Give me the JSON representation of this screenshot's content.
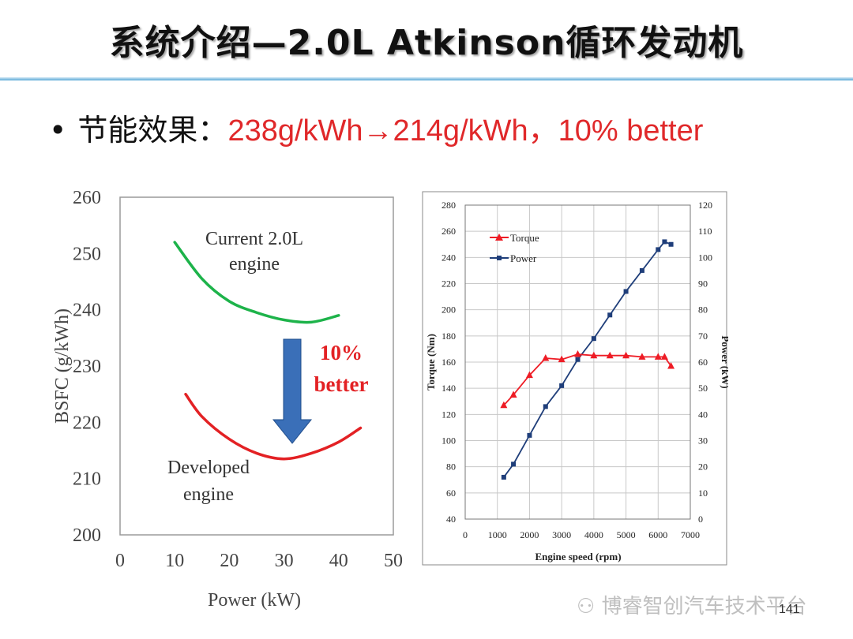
{
  "slide": {
    "title": "系统介绍—2.0L Atkinson循环发动机",
    "bullet_label": "节能效果：",
    "bullet_value": "238g/kWh→214g/kWh，10% better",
    "footer_logo_text": "博睿智创汽车技术平台",
    "page_number": "141"
  },
  "colors": {
    "current_curve": "#1db34a",
    "developed_curve": "#e32124",
    "arrow": "#3a6fb8",
    "annotation": "#e32124",
    "torque": "#ee1c25",
    "power": "#1f3e7a"
  },
  "chart_data": [
    {
      "type": "line",
      "xlabel": "Power (kW)",
      "ylabel": "BSFC (g/kWh)",
      "xlim": [
        0,
        50
      ],
      "ylim": [
        200,
        260
      ],
      "x_ticks": [
        "0",
        "10",
        "20",
        "30",
        "40",
        "50"
      ],
      "y_ticks": [
        "200",
        "210",
        "220",
        "230",
        "240",
        "250",
        "260"
      ],
      "grid": false,
      "series": [
        {
          "name": "Current 2.0L engine",
          "label_lines": [
            "Current 2.0L",
            "engine"
          ],
          "x": [
            10,
            15,
            20,
            25,
            30,
            35,
            40
          ],
          "y": [
            252,
            245.5,
            241.5,
            239.5,
            238.2,
            237.8,
            239
          ]
        },
        {
          "name": "Developed engine",
          "label_lines": [
            "Developed",
            "engine"
          ],
          "x": [
            12,
            15,
            20,
            25,
            30,
            35,
            40,
            44
          ],
          "y": [
            225,
            221,
            217,
            214.5,
            213.5,
            214.5,
            216.5,
            219
          ]
        }
      ],
      "annotations": [
        "10%",
        "better"
      ]
    },
    {
      "type": "line",
      "xlabel": "Engine speed (rpm)",
      "ylabel": "Torque (Nm)",
      "y2label": "Power (kW)",
      "xlim": [
        0,
        7000
      ],
      "ylim": [
        40,
        280
      ],
      "y2lim": [
        0,
        120
      ],
      "x_ticks": [
        "0",
        "1000",
        "2000",
        "3000",
        "4000",
        "5000",
        "6000",
        "7000"
      ],
      "y_ticks": [
        "40",
        "60",
        "80",
        "100",
        "120",
        "140",
        "160",
        "180",
        "200",
        "220",
        "240",
        "260",
        "280"
      ],
      "y2_ticks": [
        "0",
        "10",
        "20",
        "30",
        "40",
        "50",
        "60",
        "70",
        "80",
        "90",
        "100",
        "110",
        "120"
      ],
      "grid": true,
      "legend": "top-left",
      "series": [
        {
          "name": "Torque",
          "axis": "left",
          "marker": "triangle",
          "x": [
            1200,
            1500,
            2000,
            2500,
            3000,
            3500,
            4000,
            4500,
            5000,
            5500,
            6000,
            6200,
            6400
          ],
          "y": [
            127,
            135,
            150,
            163,
            162,
            166,
            165,
            165,
            165,
            164,
            164,
            164,
            157
          ]
        },
        {
          "name": "Power",
          "axis": "right",
          "marker": "square",
          "x": [
            1200,
            1500,
            2000,
            2500,
            3000,
            3500,
            4000,
            4500,
            5000,
            5500,
            6000,
            6200,
            6400
          ],
          "y": [
            16,
            21,
            32,
            43,
            51,
            61,
            69,
            78,
            87,
            95,
            103,
            106,
            105
          ]
        }
      ]
    }
  ]
}
